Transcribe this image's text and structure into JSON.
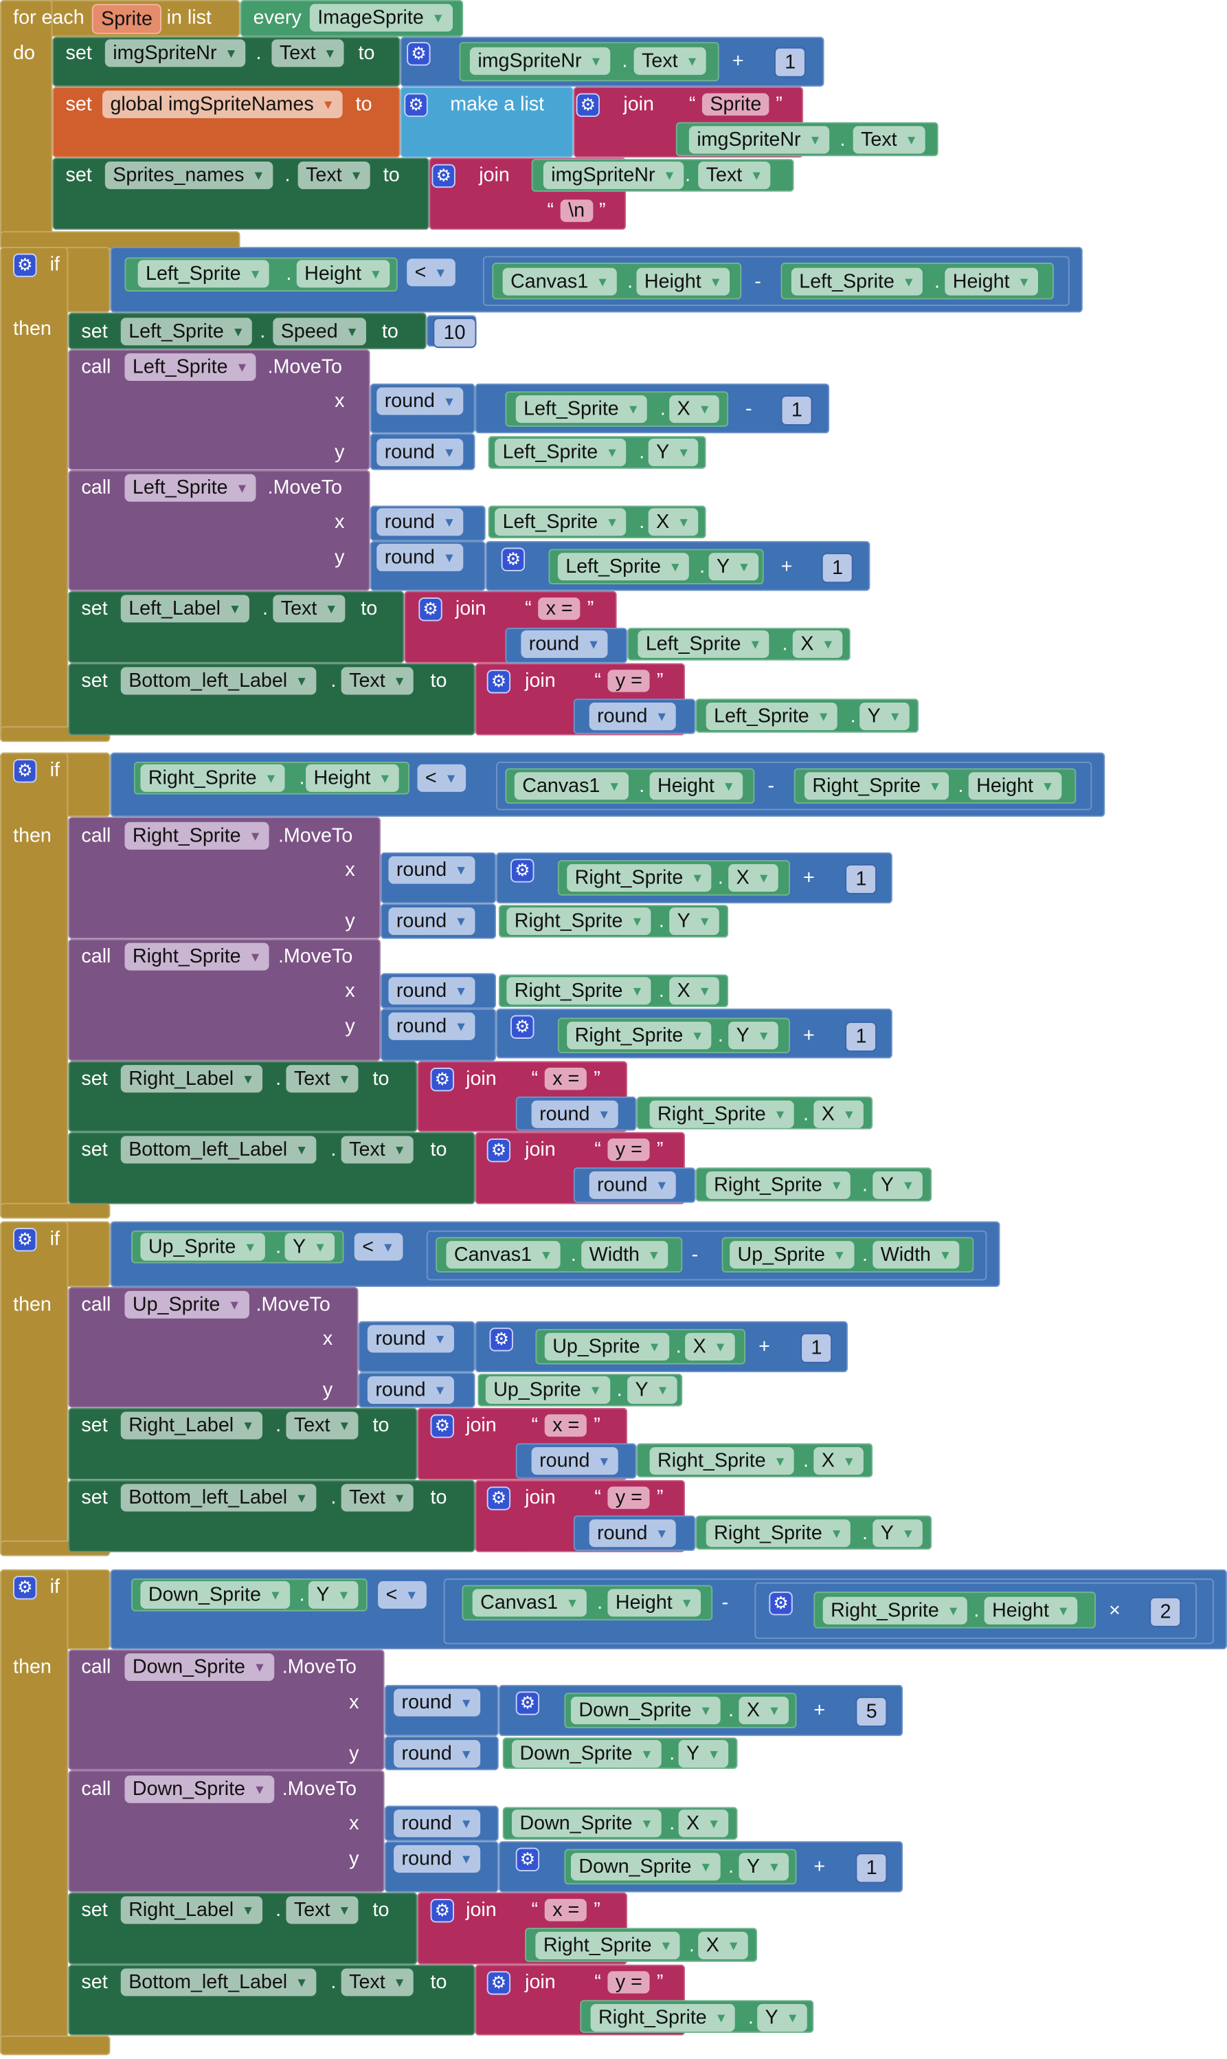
{
  "colors": {
    "control": "#B18E35",
    "setter": "#266A45",
    "component": "#449B6C",
    "math": "#3F71B5",
    "variable": "#D05F2D",
    "list": "#49A6D4",
    "text": "#B32C5E",
    "method": "#7C5385"
  },
  "blocks": {
    "foreach": [
      "for each",
      "Sprite",
      "in list",
      "every",
      "ImageSprite",
      "do"
    ],
    "set1": [
      "set",
      "imgSpriteNr",
      ".",
      "Text",
      "to",
      "imgSpriteNr",
      ".",
      "Text",
      "+",
      "1"
    ],
    "set2": [
      "set",
      "global imgSpriteNames",
      "to",
      "make a list",
      "join",
      "Sprite",
      "imgSpriteNr",
      ".",
      "Text"
    ],
    "set3": [
      "set",
      "Sprites_names",
      ".",
      "Text",
      "to",
      "join",
      "imgSpriteNr",
      ".",
      "Text",
      "\\n"
    ],
    "if1": [
      "if",
      "Left_Sprite",
      ".",
      "Height",
      "<",
      "Canvas1",
      ".",
      "Height",
      "-",
      "Left_Sprite",
      ".",
      "Height",
      "then"
    ],
    "speed1": [
      "set",
      "Left_Sprite",
      ".",
      "Speed",
      "to",
      "10"
    ],
    "mv1": [
      "call",
      "Left_Sprite",
      ".MoveTo",
      "x",
      "y",
      "round",
      "Left_Sprite",
      ".",
      "X",
      "-",
      "1",
      "round",
      "Left_Sprite",
      ".",
      "Y"
    ],
    "mv2": [
      "call",
      "Left_Sprite",
      ".MoveTo",
      "x",
      "y",
      "round",
      "Left_Sprite",
      ".",
      "X",
      "round",
      "Left_Sprite",
      ".",
      "Y",
      "+",
      "1"
    ],
    "lbl1": [
      "set",
      "Left_Label",
      ".",
      "Text",
      "to",
      "join",
      "x =",
      "round",
      "Left_Sprite",
      ".",
      "X"
    ],
    "bot1": [
      "set",
      "Bottom_left_Label",
      ".",
      "Text",
      "to",
      "join",
      "y =",
      "round",
      "Left_Sprite",
      ".",
      "Y"
    ],
    "if2": [
      "if",
      "Right_Sprite",
      ".",
      "Height",
      "<",
      "Canvas1",
      ".",
      "Height",
      "-",
      "Right_Sprite",
      ".",
      "Height",
      "then"
    ],
    "mv3": [
      "call",
      "Right_Sprite",
      ".MoveTo",
      "x",
      "y",
      "round",
      "Right_Sprite",
      ".",
      "X",
      "+",
      "1",
      "round",
      "Right_Sprite",
      ".",
      "Y"
    ],
    "mv4": [
      "call",
      "Right_Sprite",
      ".MoveTo",
      "x",
      "y",
      "round",
      "Right_Sprite",
      ".",
      "X",
      "round",
      "Right_Sprite",
      ".",
      "Y",
      "+",
      "1"
    ],
    "lbl2": [
      "set",
      "Right_Label",
      ".",
      "Text",
      "to",
      "join",
      "x =",
      "round",
      "Right_Sprite",
      ".",
      "X"
    ],
    "bot2": [
      "set",
      "Bottom_left_Label",
      ".",
      "Text",
      "to",
      "join",
      "y =",
      "round",
      "Right_Sprite",
      ".",
      "Y"
    ],
    "if3": [
      "if",
      "Up_Sprite",
      ".",
      "Y",
      "<",
      "Canvas1",
      ".",
      "Width",
      "-",
      "Up_Sprite",
      ".",
      "Width",
      "then"
    ],
    "mv5": [
      "call",
      "Up_Sprite",
      ".MoveTo",
      "x",
      "y",
      "round",
      "Up_Sprite",
      ".",
      "X",
      "+",
      "1",
      "round",
      "Up_Sprite",
      ".",
      "Y"
    ],
    "lbl3": [
      "set",
      "Right_Label",
      ".",
      "Text",
      "to",
      "join",
      "x =",
      "round",
      "Right_Sprite",
      ".",
      "X"
    ],
    "bot3": [
      "set",
      "Bottom_left_Label",
      ".",
      "Text",
      "to",
      "join",
      "y =",
      "round",
      "Right_Sprite",
      ".",
      "Y"
    ],
    "if4": [
      "if",
      "Down_Sprite",
      ".",
      "Y",
      "<",
      "Canvas1",
      ".",
      "Height",
      "-",
      "Right_Sprite",
      ".",
      "Height",
      "×",
      "2",
      "then"
    ],
    "mv6": [
      "call",
      "Down_Sprite",
      ".MoveTo",
      "x",
      "y",
      "round",
      "Down_Sprite",
      ".",
      "X",
      "+",
      "5",
      "round",
      "Down_Sprite",
      ".",
      "Y"
    ],
    "mv7": [
      "call",
      "Down_Sprite",
      ".MoveTo",
      "x",
      "y",
      "round",
      "Down_Sprite",
      ".",
      "X",
      "round",
      "Down_Sprite",
      ".",
      "Y",
      "+",
      "1"
    ],
    "lbl4": [
      "set",
      "Right_Label",
      ".",
      "Text",
      "to",
      "join",
      "x =",
      "Right_Sprite",
      ".",
      "X"
    ],
    "bot4": [
      "set",
      "Bottom_left_Label",
      ".",
      "Text",
      "to",
      "join",
      "y =",
      "Right_Sprite",
      ".",
      "Y"
    ]
  },
  "icons": {
    "mutator": "gear-icon",
    "dropdown": "triangle-down-icon"
  }
}
